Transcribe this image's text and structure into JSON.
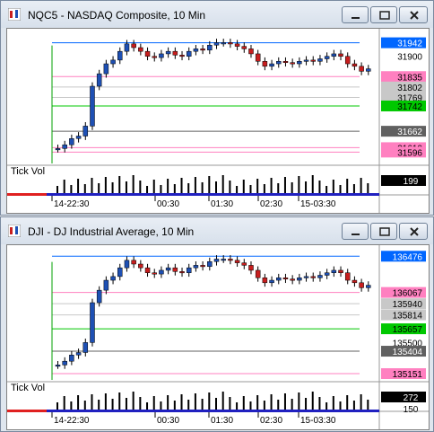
{
  "windows": [
    {
      "title": "NQC5 - NASDAQ Composite, 10 Min",
      "indicator_label": "Tick Vol",
      "volume_value": "199",
      "x_labels": [
        "14-22:30",
        "00:30",
        "01:30",
        "02:30",
        "15-03:30"
      ],
      "price_labels": [
        {
          "text": "31942",
          "style": "blue"
        },
        {
          "text": "31900",
          "style": "plain"
        },
        {
          "text": "31835",
          "style": "pink"
        },
        {
          "text": "31802",
          "style": "gray"
        },
        {
          "text": "31769",
          "style": "gray"
        },
        {
          "text": "31742",
          "style": "green"
        },
        {
          "text": "31662",
          "style": "dark"
        },
        {
          "text": "31610",
          "style": "pink"
        },
        {
          "text": "31596",
          "style": "pink"
        }
      ],
      "price_min": 31560,
      "price_max": 31975
    },
    {
      "title": "DJI - DJ Industrial Average, 10 Min",
      "indicator_label": "Tick Vol",
      "volume_value": "272",
      "volume_value2": "150",
      "x_labels": [
        "14-22:30",
        "00:30",
        "01:30",
        "02:30",
        "15-03:30"
      ],
      "price_labels": [
        {
          "text": "136476",
          "style": "blue"
        },
        {
          "text": "136067",
          "style": "pink"
        },
        {
          "text": "135940",
          "style": "gray"
        },
        {
          "text": "135814",
          "style": "gray"
        },
        {
          "text": "135657",
          "style": "green"
        },
        {
          "text": "135500",
          "style": "plain"
        },
        {
          "text": "135404",
          "style": "dark"
        },
        {
          "text": "135151",
          "style": "pink"
        }
      ],
      "price_min": 135080,
      "price_max": 136560
    }
  ],
  "colors": {
    "up": "#1e50b4",
    "down": "#c81e1e",
    "blue": "#0066ff",
    "pink": "#ff80c0",
    "green": "#00a000",
    "gray": "#c8c8c8",
    "dark": "#606060"
  }
}
